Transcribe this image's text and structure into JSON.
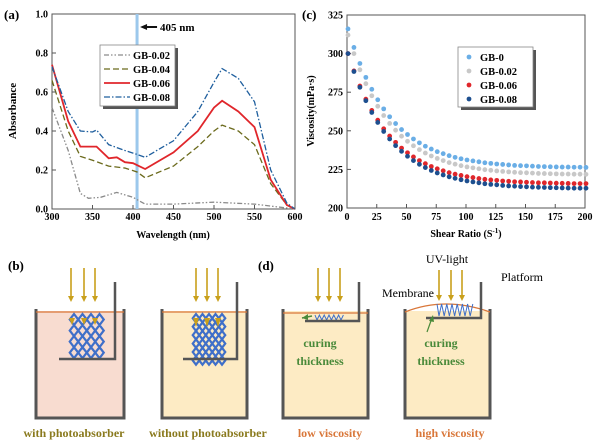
{
  "chart_data": [
    {
      "panel": "(a)",
      "type": "line",
      "xlabel": "Wavelength (nm)",
      "ylabel": "Absorbance",
      "xlim": [
        300,
        600
      ],
      "ylim": [
        0,
        1.0
      ],
      "xticks": [
        "300",
        "350",
        "400",
        "450",
        "500",
        "550",
        "600"
      ],
      "yticks": [
        "0.0",
        "0.2",
        "0.4",
        "0.6",
        "0.8",
        "1.0"
      ],
      "annotation": "405 nm",
      "annotation_x": 405,
      "legend_position": "top-left",
      "series": [
        {
          "name": "GB-0.02",
          "color": "#8a8a8a",
          "dash": "dash-dot-dot",
          "points": [
            [
              300,
              0.52
            ],
            [
              320,
              0.3
            ],
            [
              335,
              0.08
            ],
            [
              345,
              0.055
            ],
            [
              360,
              0.06
            ],
            [
              380,
              0.085
            ],
            [
              400,
              0.06
            ],
            [
              415,
              0.025
            ],
            [
              450,
              0.025
            ],
            [
              500,
              0.035
            ],
            [
              550,
              0.025
            ],
            [
              580,
              0.01
            ],
            [
              600,
              0
            ]
          ]
        },
        {
          "name": "GB-0.04",
          "color": "#6b6a1c",
          "dash": "dash",
          "points": [
            [
              300,
              0.66
            ],
            [
              320,
              0.4
            ],
            [
              335,
              0.27
            ],
            [
              350,
              0.25
            ],
            [
              370,
              0.22
            ],
            [
              390,
              0.21
            ],
            [
              405,
              0.19
            ],
            [
              415,
              0.16
            ],
            [
              450,
              0.22
            ],
            [
              480,
              0.32
            ],
            [
              500,
              0.4
            ],
            [
              510,
              0.43
            ],
            [
              530,
              0.4
            ],
            [
              550,
              0.33
            ],
            [
              570,
              0.13
            ],
            [
              590,
              0.02
            ],
            [
              600,
              0
            ]
          ]
        },
        {
          "name": "GB-0.06",
          "color": "#e0262b",
          "dash": "solid",
          "points": [
            [
              300,
              0.74
            ],
            [
              320,
              0.45
            ],
            [
              335,
              0.32
            ],
            [
              355,
              0.32
            ],
            [
              370,
              0.26
            ],
            [
              380,
              0.265
            ],
            [
              390,
              0.24
            ],
            [
              400,
              0.235
            ],
            [
              415,
              0.205
            ],
            [
              450,
              0.29
            ],
            [
              480,
              0.4
            ],
            [
              500,
              0.52
            ],
            [
              510,
              0.555
            ],
            [
              530,
              0.5
            ],
            [
              550,
              0.42
            ],
            [
              570,
              0.15
            ],
            [
              590,
              0.02
            ],
            [
              600,
              0
            ]
          ]
        },
        {
          "name": "GB-0.08",
          "color": "#1f5f9e",
          "dash": "dash-dot",
          "points": [
            [
              300,
              0.73
            ],
            [
              320,
              0.5
            ],
            [
              335,
              0.4
            ],
            [
              350,
              0.395
            ],
            [
              355,
              0.405
            ],
            [
              370,
              0.33
            ],
            [
              390,
              0.3
            ],
            [
              405,
              0.28
            ],
            [
              415,
              0.265
            ],
            [
              450,
              0.35
            ],
            [
              480,
              0.5
            ],
            [
              500,
              0.65
            ],
            [
              510,
              0.72
            ],
            [
              530,
              0.67
            ],
            [
              550,
              0.55
            ],
            [
              570,
              0.2
            ],
            [
              590,
              0.03
            ],
            [
              600,
              0
            ]
          ]
        }
      ]
    },
    {
      "panel": "(c)",
      "type": "scatter",
      "xlabel": "Shear Ratio (S",
      "xlabel_sup": "-1",
      "xlabel_end": ")",
      "ylabel": "Viscosity(mPa·s)",
      "xlim": [
        0,
        200
      ],
      "ylim": [
        200,
        325
      ],
      "xticks": [
        "0",
        "25",
        "50",
        "75",
        "100",
        "125",
        "150",
        "175",
        "200"
      ],
      "yticks": [
        "200",
        "225",
        "250",
        "275",
        "300",
        "325"
      ],
      "legend_position": "top-right",
      "x": [
        0,
        5,
        10,
        15,
        20,
        25,
        30,
        35,
        40,
        45,
        50,
        55,
        60,
        65,
        70,
        75,
        80,
        85,
        90,
        95,
        100,
        105,
        110,
        115,
        120,
        125,
        130,
        135,
        140,
        145,
        150,
        155,
        160,
        165,
        170,
        175,
        180,
        185,
        190,
        195,
        200
      ],
      "series": [
        {
          "name": "GB-0",
          "color": "#6aaee6",
          "values": [
            316,
            304,
            293.6,
            284.6,
            276.9,
            270.1,
            264.2,
            259.1,
            254.7,
            250.8,
            247.6,
            244.7,
            242.2,
            240,
            238.2,
            236.5,
            235.2,
            233.9,
            232.8,
            231.9,
            231.1,
            230.5,
            229.9,
            229.3,
            228.9,
            228.5,
            228.2,
            227.9,
            227.6,
            227.4,
            227.3,
            227.1,
            226.9,
            226.8,
            226.7,
            226.6,
            226.5,
            226.5,
            226.4,
            226.4,
            226.3
          ]
        },
        {
          "name": "GB-0.02",
          "color": "#c8c8c8",
          "values": [
            312,
            300,
            289.5,
            280.5,
            272.7,
            265.9,
            259.9,
            254.8,
            250.4,
            246.5,
            243.2,
            240.3,
            237.8,
            235.6,
            233.7,
            232.1,
            230.7,
            229.4,
            228.4,
            227.4,
            226.6,
            226,
            225.4,
            224.8,
            224.4,
            224,
            223.7,
            223.4,
            223.1,
            222.9,
            222.8,
            222.6,
            222.4,
            222.3,
            222.2,
            222.1,
            222,
            222,
            221.9,
            221.9,
            221.8
          ]
        },
        {
          "name": "GB-0.06",
          "color": "#e0262b",
          "values": [
            300,
            288.8,
            279,
            270.5,
            263.2,
            256.9,
            251.3,
            246.6,
            242.5,
            238.8,
            235.8,
            233.1,
            230.7,
            228.7,
            226.9,
            225.4,
            224.1,
            222.9,
            221.9,
            221.1,
            220.3,
            219.7,
            219.1,
            218.6,
            218.2,
            217.9,
            217.5,
            217.3,
            217,
            216.9,
            216.7,
            216.5,
            216.3,
            216.3,
            216.2,
            216.1,
            216,
            215.9,
            215.8,
            215.8,
            215.8
          ]
        },
        {
          "name": "GB-0.08",
          "color": "#1d4f8f",
          "values": [
            300,
            288.4,
            278.2,
            269.5,
            261.9,
            255.4,
            249.6,
            244.7,
            240.4,
            236.7,
            233.5,
            230.7,
            228.3,
            226.2,
            224.3,
            222.7,
            221.4,
            220.2,
            219.2,
            218.3,
            217.5,
            216.9,
            216.3,
            215.7,
            215.3,
            215,
            214.6,
            214.3,
            214.1,
            213.9,
            213.7,
            213.5,
            213.4,
            213.3,
            213.2,
            213.1,
            213,
            212.9,
            212.8,
            212.8,
            212.8
          ]
        }
      ]
    }
  ],
  "diagram_b": {
    "panel": "(b)",
    "left_caption": "with photoabsorber",
    "right_caption": "without photoabsorber",
    "colors": {
      "with_resin": "#f8dcd0",
      "without_resin": "#fdebc4",
      "light": "#c9a01c",
      "lattice": "#3f6fc9",
      "caption": "#8a7a1e"
    }
  },
  "diagram_d": {
    "panel": "(d)",
    "left_caption": "low viscosity",
    "right_caption": "high viscosity",
    "curing_label_line1": "curing",
    "curing_label_line2": "thickness",
    "uv_label": "UV-light",
    "platform_label": "Platform",
    "membrane_label": "Membrane",
    "colors": {
      "caption": "#d9773a",
      "curing": "#4a8a3a",
      "membrane": "#d9773a"
    }
  }
}
